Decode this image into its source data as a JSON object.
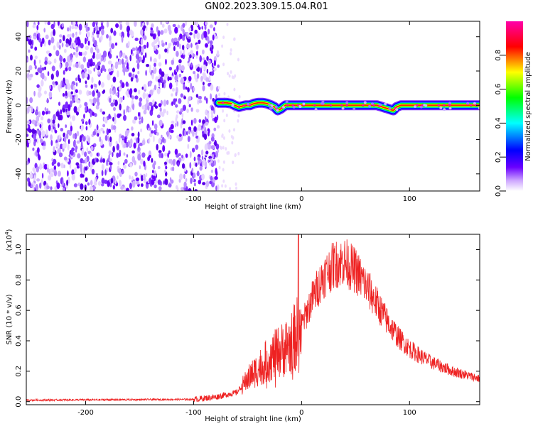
{
  "title": "GN02.2023.309.15.04.R01",
  "chart_data": [
    {
      "type": "heatmap",
      "title": "",
      "xlabel": "Height of straight line (km)",
      "ylabel": "Frequency (Hz)",
      "xlim": [
        -255,
        165
      ],
      "ylim": [
        -50,
        49
      ],
      "xticks": [
        "-200",
        "-100",
        "0",
        "100"
      ],
      "yticks": [
        "-40",
        "-20",
        "0",
        "20",
        "40"
      ],
      "colorbar": {
        "label": "Normalized spectral amplitude",
        "range": [
          0,
          1
        ],
        "ticks": [
          "0.0",
          "0.2",
          "0.4",
          "0.6",
          "0.8"
        ],
        "colors": [
          "#ffffff",
          "#6a00ff",
          "#0000ff",
          "#00ffff",
          "#00ff00",
          "#ffff00",
          "#ff0000",
          "#ff00aa"
        ]
      },
      "noise_region_x": [
        -255,
        -77
      ],
      "signal_line": {
        "x": [
          -77,
          -70,
          -65,
          -62,
          -58,
          -52,
          -48,
          -44,
          -40,
          -36,
          -32,
          -28,
          -25,
          -22,
          -19,
          -15,
          -10,
          -5,
          0,
          20,
          40,
          60,
          70,
          75,
          80,
          85,
          88,
          92,
          100,
          130,
          165
        ],
        "y": [
          1.5,
          1.5,
          1,
          0,
          -1,
          0,
          0,
          1,
          1.5,
          1.5,
          1,
          0,
          -1,
          -3,
          -2,
          0,
          0,
          0,
          0,
          0,
          0,
          0,
          0,
          -1,
          -2,
          -3,
          -1,
          0,
          0,
          0,
          0
        ]
      }
    },
    {
      "type": "line",
      "title": "",
      "xlabel": "Height of straight line (km)",
      "ylabel": "SNR (10 * v/v)",
      "y_multiplier": "(x10",
      "y_multiplier_exp": "4",
      "xlim": [
        -255,
        165
      ],
      "ylim": [
        -0.02,
        1.1
      ],
      "xticks": [
        "-200",
        "-100",
        "0",
        "100"
      ],
      "yticks": [
        "0.0",
        "0.2",
        "0.4",
        "0.6",
        "0.8",
        "1.0"
      ],
      "line_color": "#ee2222",
      "x_range": [
        -255,
        165
      ],
      "envelope": {
        "x": [
          -255,
          -100,
          -80,
          -60,
          -50,
          -40,
          -30,
          -20,
          -10,
          0,
          10,
          20,
          30,
          40,
          50,
          60,
          70,
          80,
          90,
          100,
          110,
          120,
          130,
          140,
          150,
          160,
          165
        ],
        "y": [
          0.01,
          0.015,
          0.03,
          0.06,
          0.15,
          0.22,
          0.28,
          0.33,
          0.38,
          0.5,
          0.68,
          0.82,
          0.9,
          0.92,
          0.86,
          0.76,
          0.64,
          0.52,
          0.42,
          0.35,
          0.3,
          0.26,
          0.23,
          0.2,
          0.18,
          0.16,
          0.15
        ]
      },
      "spike": {
        "x": -3,
        "y": 1.1
      }
    }
  ]
}
